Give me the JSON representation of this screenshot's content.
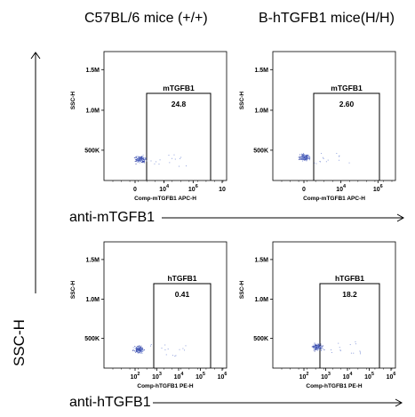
{
  "columns": {
    "left": "C57BL/6 mice (+/+)",
    "right": "B-hTGFB1 mice(H/H)"
  },
  "row_labels": {
    "top": "anti-mTGFB1",
    "bottom": "anti-hTGFB1"
  },
  "y_axis_label": "SSC-H",
  "chart_data": [
    {
      "type": "scatter",
      "title": "",
      "ylabel": "SSC-H",
      "xlabel": "Comp-mTGFB1 APC-H",
      "y_ticks": [
        "500K",
        "1.0M",
        "1.5M"
      ],
      "x_ticks": [
        "0",
        "10",
        "10",
        "10"
      ],
      "x_tick_exps": [
        "",
        "4",
        "6",
        ""
      ],
      "gate": {
        "name": "mTGFB1",
        "percent": "24.8"
      }
    },
    {
      "type": "scatter",
      "title": "",
      "ylabel": "SSC-H",
      "xlabel": "Comp-mTGFB1 APC-H",
      "y_ticks": [
        "500K",
        "1.0M",
        "1.5M"
      ],
      "x_ticks": [
        "0",
        "10",
        "10"
      ],
      "x_tick_exps": [
        "",
        "4",
        "6"
      ],
      "gate": {
        "name": "mTGFB1",
        "percent": "2.60"
      }
    },
    {
      "type": "scatter",
      "title": "",
      "ylabel": "SSC-H",
      "xlabel": "Comp-hTGFB1 PE-H",
      "y_ticks": [
        "500K",
        "1.0M",
        "1.5M"
      ],
      "x_ticks": [
        "10",
        "10",
        "10",
        "10",
        "10"
      ],
      "x_tick_exps": [
        "2",
        "3",
        "4",
        "5",
        "6"
      ],
      "gate": {
        "name": "hTGFB1",
        "percent": "0.41"
      }
    },
    {
      "type": "scatter",
      "title": "",
      "ylabel": "SSC-H",
      "xlabel": "Comp-hTGFB1 PE-H",
      "y_ticks": [
        "500K",
        "1.0M",
        "1.5M"
      ],
      "x_ticks": [
        "10",
        "10",
        "10",
        "10",
        "10"
      ],
      "x_tick_exps": [
        "2",
        "3",
        "4",
        "5",
        "6"
      ],
      "gate": {
        "name": "hTGFB1",
        "percent": "18.2"
      }
    }
  ],
  "colors": {
    "dots": "#2a3aa0",
    "dots_light": "#7b8fd6",
    "frame": "#000000"
  }
}
